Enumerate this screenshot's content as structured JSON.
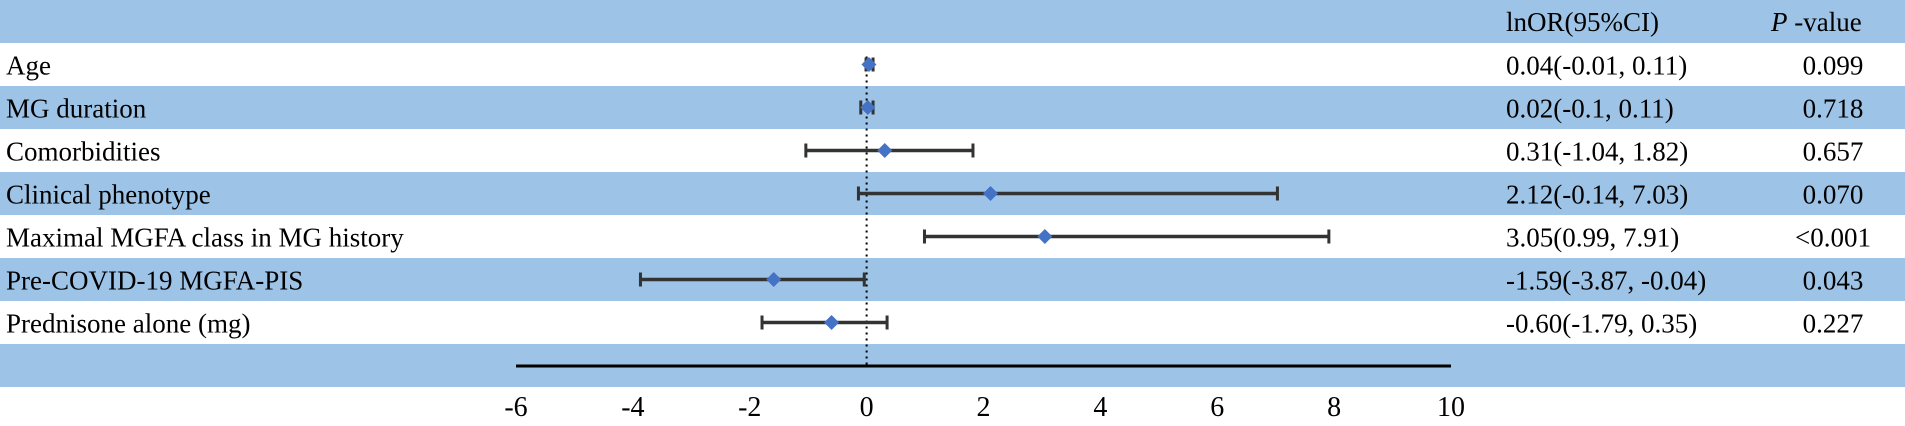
{
  "chart_data": {
    "type": "forest",
    "header": {
      "estimate": "lnOR(95%CI)",
      "p_italic": "P",
      "p_rest": " -value"
    },
    "rows": [
      {
        "label": "Age",
        "est": 0.04,
        "lo": -0.01,
        "hi": 0.11,
        "ci_text": "0.04(-0.01, 0.11)",
        "p": "0.099"
      },
      {
        "label": "MG duration",
        "est": 0.02,
        "lo": -0.1,
        "hi": 0.11,
        "ci_text": "0.02(-0.1, 0.11)",
        "p": "0.718"
      },
      {
        "label": "Comorbidities",
        "est": 0.31,
        "lo": -1.04,
        "hi": 1.82,
        "ci_text": "0.31(-1.04, 1.82)",
        "p": "0.657"
      },
      {
        "label": "Clinical phenotype",
        "est": 2.12,
        "lo": -0.14,
        "hi": 7.03,
        "ci_text": "2.12(-0.14, 7.03)",
        "p": "0.070"
      },
      {
        "label": "Maximal MGFA class in MG history",
        "est": 3.05,
        "lo": 0.99,
        "hi": 7.91,
        "ci_text": "3.05(0.99, 7.91)",
        "p": "<0.001"
      },
      {
        "label": "Pre-COVID-19 MGFA-PIS",
        "est": -1.59,
        "lo": -3.87,
        "hi": -0.04,
        "ci_text": "-1.59(-3.87, -0.04)",
        "p": "0.043"
      },
      {
        "label": "Prednisone alone (mg)",
        "est": -0.6,
        "lo": -1.79,
        "hi": 0.35,
        "ci_text": "-0.60(-1.79, 0.35)",
        "p": "0.227"
      }
    ],
    "x_range": [
      -6,
      10
    ],
    "ticks": [
      -6,
      -4,
      -2,
      0,
      2,
      4,
      6,
      8,
      10
    ],
    "ref_line": 0,
    "band_color": "#9dc3e6",
    "marker_color": "#4472c4",
    "whisker_color": "#333333"
  }
}
